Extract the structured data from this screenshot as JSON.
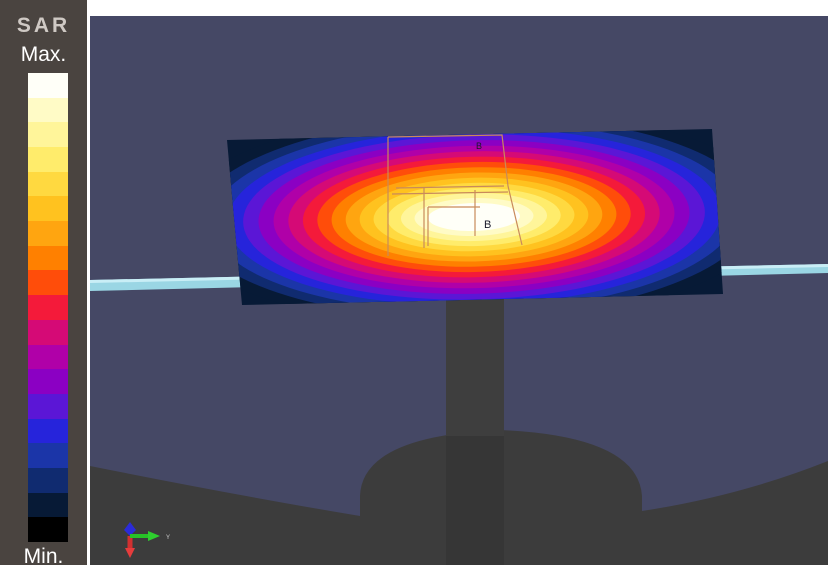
{
  "legend": {
    "title": "SAR",
    "max_label": "Max.",
    "min_label": "Min.",
    "colors": [
      "#fffff8",
      "#fffbc6",
      "#fff59a",
      "#ffec6b",
      "#ffd940",
      "#ffc21f",
      "#ffa510",
      "#ff8000",
      "#ff4d0a",
      "#f41a3a",
      "#d50a76",
      "#b000a8",
      "#8b00c3",
      "#5b16d6",
      "#2624db",
      "#1b35a8",
      "#102b70",
      "#071a36",
      "#000000"
    ]
  },
  "scene": {
    "bg": "#454865",
    "probe_labels": [
      "B",
      "B"
    ],
    "axis_label": "Y"
  }
}
